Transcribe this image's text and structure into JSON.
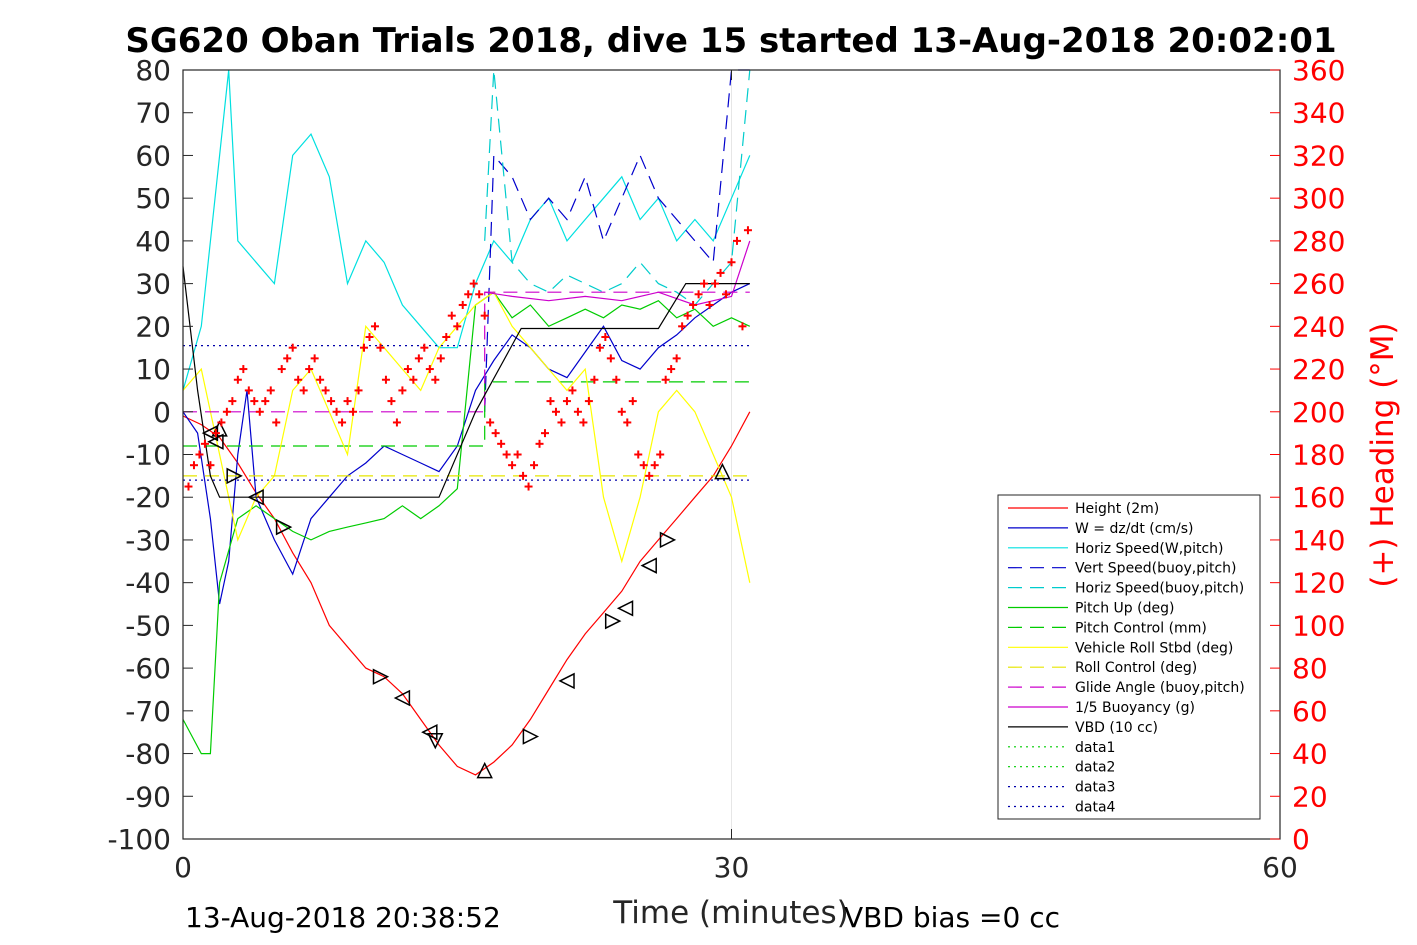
{
  "chart_data": {
    "type": "line",
    "title": "SG620 Oban Trials 2018, dive 15 started 13-Aug-2018 20:02:01",
    "xlabel": "Time (minutes)",
    "ylabel": "",
    "y2label": "(+) Heading (°M)",
    "xlim": [
      0,
      60
    ],
    "ylim": [
      -100,
      80
    ],
    "y2lim": [
      0,
      360
    ],
    "xticks": [
      "0",
      "30",
      "60"
    ],
    "yticks": [
      "80",
      "70",
      "60",
      "50",
      "40",
      "30",
      "20",
      "10",
      "0",
      "-10",
      "-20",
      "-30",
      "-40",
      "-50",
      "-60",
      "-70",
      "-80",
      "-90",
      "-100"
    ],
    "y2ticks": [
      "360",
      "340",
      "320",
      "300",
      "280",
      "260",
      "240",
      "220",
      "200",
      "180",
      "160",
      "140",
      "120",
      "100",
      "80",
      "60",
      "40",
      "20",
      "0"
    ],
    "grid": "x-only",
    "legend_position": "bottom-right",
    "footer_left": "13-Aug-2018 20:38:52",
    "footer_right": "VBD bias =0 cc",
    "series": [
      {
        "name": "Height (2m)",
        "color": "#ff0000",
        "style": "solid",
        "x": [
          0,
          1,
          2,
          3,
          4,
          5,
          6,
          7,
          8,
          9,
          10,
          11,
          12,
          13,
          14,
          15,
          16,
          17,
          18,
          19,
          20,
          21,
          22,
          23,
          24,
          25,
          26,
          27,
          28,
          29,
          30,
          31
        ],
        "values": [
          -1,
          -3,
          -6,
          -12,
          -19,
          -25,
          -33,
          -40,
          -50,
          -55,
          -60,
          -62,
          -66,
          -72,
          -78,
          -83,
          -85,
          -82,
          -78,
          -72,
          -65,
          -58,
          -52,
          -47,
          -42,
          -35,
          -30,
          -25,
          -20,
          -15,
          -8,
          0
        ]
      },
      {
        "name": "W = dz/dt (cm/s)",
        "color": "#0000cc",
        "style": "solid",
        "x": [
          0,
          0.8,
          1.5,
          2,
          2.5,
          3,
          3.5,
          4,
          5,
          6,
          7,
          8,
          9,
          10,
          11,
          12,
          13,
          14,
          15,
          16,
          17,
          18,
          19,
          20,
          21,
          22,
          23,
          24,
          25,
          26,
          27,
          28,
          29,
          30,
          31
        ],
        "values": [
          0,
          -5,
          -25,
          -45,
          -35,
          -10,
          5,
          -20,
          -30,
          -38,
          -25,
          -20,
          -15,
          -12,
          -8,
          -10,
          -12,
          -14,
          -8,
          5,
          12,
          18,
          15,
          10,
          8,
          14,
          20,
          12,
          10,
          15,
          18,
          22,
          25,
          28,
          30
        ]
      },
      {
        "name": "Horiz Speed(W,pitch)",
        "color": "#00e0e0",
        "style": "solid",
        "x": [
          0,
          1,
          2,
          2.5,
          3,
          4,
          5,
          6,
          7,
          8,
          9,
          10,
          11,
          12,
          13,
          14,
          15,
          16,
          17,
          18,
          19,
          20,
          21,
          22,
          23,
          24,
          25,
          26,
          27,
          28,
          29,
          30,
          31
        ],
        "values": [
          5,
          20,
          60,
          80,
          40,
          35,
          30,
          60,
          65,
          55,
          30,
          40,
          35,
          25,
          20,
          15,
          15,
          30,
          40,
          35,
          45,
          50,
          40,
          45,
          50,
          55,
          45,
          50,
          40,
          45,
          40,
          50,
          60
        ]
      },
      {
        "name": "Vert Speed(buoy,pitch)",
        "color": "#0000cc",
        "style": "dashed",
        "x": [
          16.5,
          17,
          18,
          19,
          20,
          21,
          22,
          23,
          24,
          25,
          26,
          27,
          28,
          29,
          30,
          31
        ],
        "values": [
          0,
          60,
          55,
          45,
          50,
          45,
          55,
          40,
          50,
          60,
          50,
          45,
          40,
          35,
          80,
          80
        ]
      },
      {
        "name": "Horiz Speed(buoy,pitch)",
        "color": "#00cccc",
        "style": "dashed",
        "x": [
          16.5,
          17,
          18,
          19,
          20,
          21,
          22,
          23,
          24,
          25,
          26,
          27,
          28,
          29,
          30,
          31
        ],
        "values": [
          40,
          80,
          35,
          30,
          28,
          32,
          30,
          28,
          30,
          35,
          30,
          28,
          25,
          30,
          35,
          80
        ]
      },
      {
        "name": "Pitch Up (deg)",
        "color": "#00cc00",
        "style": "solid",
        "x": [
          0,
          1,
          1.5,
          2,
          3,
          4,
          5,
          6,
          7,
          8,
          9,
          10,
          11,
          12,
          13,
          14,
          15,
          16,
          17,
          18,
          19,
          20,
          21,
          22,
          23,
          24,
          25,
          26,
          27,
          28,
          29,
          30,
          31
        ],
        "values": [
          -72,
          -80,
          -80,
          -40,
          -25,
          -22,
          -25,
          -28,
          -30,
          -28,
          -27,
          -26,
          -25,
          -22,
          -25,
          -22,
          -18,
          25,
          28,
          22,
          25,
          20,
          22,
          24,
          22,
          25,
          24,
          26,
          22,
          24,
          20,
          22,
          20
        ]
      },
      {
        "name": "Pitch Control (mm)",
        "color": "#00cc00",
        "style": "dashed",
        "x": [
          0,
          16.5,
          16.5,
          31
        ],
        "values": [
          -8,
          -8,
          7,
          7
        ]
      },
      {
        "name": "Vehicle Roll Stbd (deg)",
        "color": "#ffff00",
        "style": "solid",
        "x": [
          0,
          1,
          2,
          3,
          4,
          5,
          6,
          7,
          8,
          9,
          10,
          11,
          12,
          13,
          14,
          15,
          16,
          17,
          18,
          19,
          20,
          21,
          22,
          23,
          24,
          25,
          26,
          27,
          28,
          29,
          30,
          31
        ],
        "values": [
          5,
          10,
          -10,
          -30,
          -20,
          -15,
          5,
          10,
          0,
          -10,
          20,
          15,
          10,
          5,
          15,
          20,
          25,
          28,
          20,
          15,
          10,
          5,
          10,
          -20,
          -35,
          -20,
          0,
          5,
          0,
          -10,
          -20,
          -40
        ]
      },
      {
        "name": "Roll Control (deg)",
        "color": "#e6e600",
        "style": "dashed",
        "x": [
          0,
          31
        ],
        "values": [
          -15,
          -15
        ]
      },
      {
        "name": "Glide Angle (buoy,pitch)",
        "color": "#cc00cc",
        "style": "dashed",
        "x": [
          0,
          16.5,
          16.5,
          31
        ],
        "values": [
          0,
          0,
          28,
          28
        ]
      },
      {
        "name": "1/5 Buoyancy (g)",
        "color": "#cc00cc",
        "style": "solid",
        "x": [
          16.5,
          18,
          20,
          22,
          24,
          26,
          28,
          30,
          31
        ],
        "values": [
          28,
          27,
          26,
          27,
          26,
          28,
          25,
          27,
          40
        ]
      },
      {
        "name": "VBD (10 cc)",
        "color": "#000000",
        "style": "solid",
        "x": [
          0,
          0.8,
          1.5,
          2,
          5,
          14,
          16,
          18.5,
          26,
          27.5,
          31
        ],
        "values": [
          34,
          5,
          -15,
          -20,
          -20,
          -20,
          0,
          19.5,
          19.5,
          30,
          30
        ]
      },
      {
        "name": "data1",
        "color": "#00cc00",
        "style": "dotted",
        "x": [],
        "values": []
      },
      {
        "name": "data2",
        "color": "#00cc00",
        "style": "dotted",
        "x": [],
        "values": []
      },
      {
        "name": "data3",
        "color": "#0000aa",
        "style": "dotted",
        "x": [
          0,
          31
        ],
        "values": [
          15.5,
          15.5
        ]
      },
      {
        "name": "data4",
        "color": "#0000aa",
        "style": "dotted",
        "x": [
          0,
          31
        ],
        "values": [
          -16,
          -16
        ]
      }
    ],
    "heading_points": {
      "name": "Heading",
      "axis": "right",
      "color": "#ff0000",
      "marker": "+",
      "x": [
        0.3,
        0.6,
        0.9,
        1.2,
        1.5,
        1.8,
        2.1,
        2.4,
        2.7,
        3,
        3.3,
        3.6,
        3.9,
        4.2,
        4.5,
        4.8,
        5.1,
        5.4,
        5.7,
        6,
        6.3,
        6.6,
        6.9,
        7.2,
        7.5,
        7.8,
        8.1,
        8.4,
        8.7,
        9,
        9.3,
        9.6,
        9.9,
        10.2,
        10.5,
        10.8,
        11.1,
        11.4,
        11.7,
        12,
        12.3,
        12.6,
        12.9,
        13.2,
        13.5,
        13.8,
        14.1,
        14.4,
        14.7,
        15,
        15.3,
        15.6,
        15.9,
        16.2,
        16.5,
        16.8,
        17.1,
        17.4,
        17.7,
        18,
        18.3,
        18.6,
        18.9,
        19.2,
        19.5,
        19.8,
        20.1,
        20.4,
        20.7,
        21,
        21.3,
        21.6,
        21.9,
        22.2,
        22.5,
        22.8,
        23.1,
        23.4,
        23.7,
        24,
        24.3,
        24.6,
        24.9,
        25.2,
        25.5,
        25.8,
        26.1,
        26.4,
        26.7,
        27,
        27.3,
        27.6,
        27.9,
        28.2,
        28.5,
        28.8,
        29.1,
        29.4,
        29.7,
        30,
        30.3,
        30.6,
        30.9
      ],
      "values": [
        165,
        175,
        180,
        185,
        175,
        190,
        195,
        200,
        205,
        215,
        220,
        210,
        205,
        200,
        205,
        210,
        195,
        220,
        225,
        230,
        215,
        210,
        220,
        225,
        215,
        210,
        205,
        200,
        195,
        205,
        200,
        210,
        230,
        235,
        240,
        230,
        215,
        205,
        195,
        210,
        220,
        215,
        225,
        230,
        220,
        215,
        225,
        235,
        245,
        240,
        250,
        255,
        260,
        255,
        245,
        195,
        190,
        185,
        180,
        175,
        180,
        170,
        165,
        175,
        185,
        190,
        205,
        200,
        195,
        205,
        210,
        200,
        195,
        205,
        215,
        230,
        235,
        225,
        215,
        200,
        195,
        205,
        180,
        175,
        170,
        175,
        180,
        215,
        220,
        225,
        240,
        245,
        250,
        255,
        260,
        250,
        260,
        265,
        255,
        270,
        280,
        240,
        285
      ]
    },
    "height_markers": {
      "x": [
        1.5,
        1.8,
        2.0,
        2.8,
        4.0,
        5.5,
        10.8,
        12.0,
        13.5,
        13.8,
        16.5,
        19.0,
        21.0,
        23.5,
        24.2,
        25.5,
        26.5,
        29.5
      ],
      "values": [
        -5,
        -7,
        -4,
        -15,
        -20,
        -27,
        -62,
        -67,
        -75,
        -77,
        -84,
        -76,
        -63,
        -49,
        -46,
        -36,
        -30,
        -14
      ],
      "directions": [
        "left",
        "left",
        "up",
        "right",
        "left",
        "right",
        "right",
        "left",
        "left",
        "down",
        "up",
        "right",
        "left",
        "right",
        "left",
        "left",
        "right",
        "up"
      ]
    }
  }
}
